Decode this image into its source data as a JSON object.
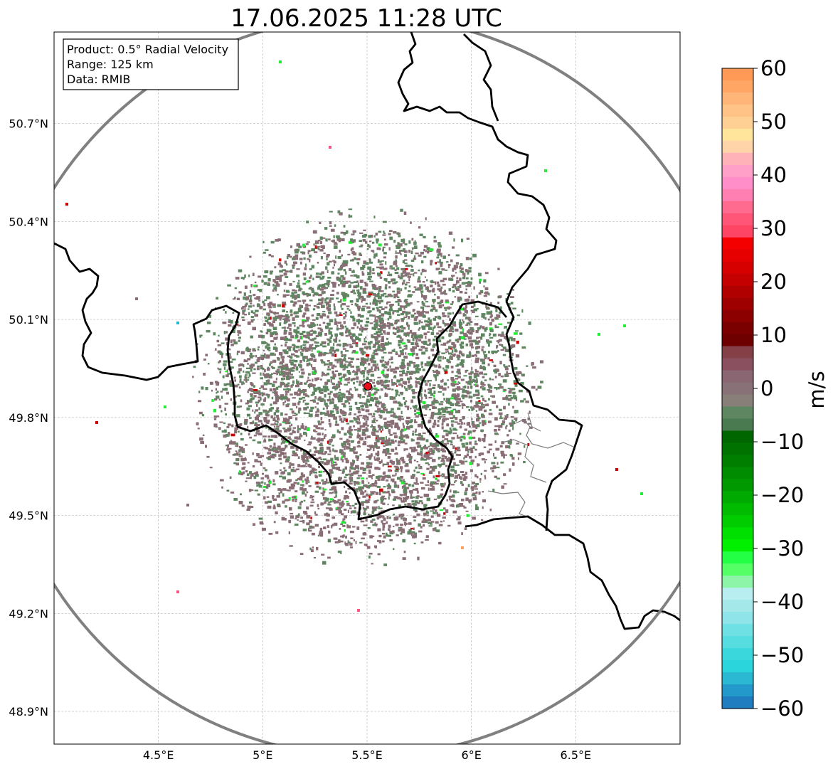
{
  "title": "17.06.2025 11:28 UTC",
  "info_box": {
    "lines": [
      "Product: 0.5° Radial Velocity",
      "Range: 125 km",
      "Data: RMIB"
    ]
  },
  "map": {
    "lon_range": [
      4.0,
      7.0
    ],
    "lat_range": [
      48.8,
      50.98
    ],
    "x_ticks": [
      {
        "value": 4.5,
        "label": "4.5°E"
      },
      {
        "value": 5.0,
        "label": "5°E"
      },
      {
        "value": 5.5,
        "label": "5.5°E"
      },
      {
        "value": 6.0,
        "label": "6°E"
      },
      {
        "value": 6.5,
        "label": "6.5°E"
      }
    ],
    "y_ticks": [
      {
        "value": 50.7,
        "label": "50.7°N"
      },
      {
        "value": 50.4,
        "label": "50.4°N"
      },
      {
        "value": 50.1,
        "label": "50.1°N"
      },
      {
        "value": 49.8,
        "label": "49.8°N"
      },
      {
        "value": 49.5,
        "label": "49.5°N"
      },
      {
        "value": 49.2,
        "label": "49.2°N"
      },
      {
        "value": 48.9,
        "label": "48.9°N"
      }
    ],
    "gridlines": true,
    "radar_site": {
      "lon": 5.505,
      "lat": 49.914,
      "color": "#e8101a"
    },
    "range_ring_color": "#808080",
    "border_color": "#000000"
  },
  "colorbar": {
    "label": "m/s",
    "min": -60,
    "max": 60,
    "ticks": [
      {
        "value": 60,
        "label": "60"
      },
      {
        "value": 50,
        "label": "50"
      },
      {
        "value": 40,
        "label": "40"
      },
      {
        "value": 30,
        "label": "30"
      },
      {
        "value": 20,
        "label": "20"
      },
      {
        "value": 10,
        "label": "10"
      },
      {
        "value": 0,
        "label": "0"
      },
      {
        "value": -10,
        "label": "−10"
      },
      {
        "value": -20,
        "label": "−20"
      },
      {
        "value": -30,
        "label": "−30"
      },
      {
        "value": -40,
        "label": "−40"
      },
      {
        "value": -50,
        "label": "−50"
      },
      {
        "value": -60,
        "label": "−60"
      }
    ],
    "colors_top_to_bottom": [
      "#ff9955",
      "#ffa665",
      "#ffb578",
      "#ffc287",
      "#ffd094",
      "#ffe49c",
      "#ffd4a8",
      "#ffb3b8",
      "#ffa0c8",
      "#ff8ec9",
      "#ff7fb2",
      "#ff6a8e",
      "#ff5577",
      "#ff4563",
      "#f40000",
      "#e60000",
      "#d60000",
      "#c40000",
      "#b10000",
      "#9e0000",
      "#8c0000",
      "#7a0000",
      "#6e0000",
      "#844046",
      "#8a5060",
      "#8a6672",
      "#887278",
      "#888078",
      "#5e8660",
      "#4a7a50",
      "#006600",
      "#007200",
      "#007e00",
      "#008c00",
      "#009a00",
      "#00aa00",
      "#00bb00",
      "#00cc00",
      "#00e000",
      "#00f000",
      "#22ff44",
      "#55ff66",
      "#8cf5a8",
      "#b8eef0",
      "#a5e8ea",
      "#8ee4e8",
      "#6fe0e4",
      "#55dde0",
      "#3ad8dc",
      "#2ad5dc",
      "#2ab8d2",
      "#2398ca",
      "#1f7dc0"
    ]
  },
  "echo_colors": {
    "pos": "#8a6e76",
    "neg": "#5e8660",
    "accent_green": "#22ee33",
    "accent_red": "#cc0000",
    "accent_pink": "#ff5580"
  }
}
